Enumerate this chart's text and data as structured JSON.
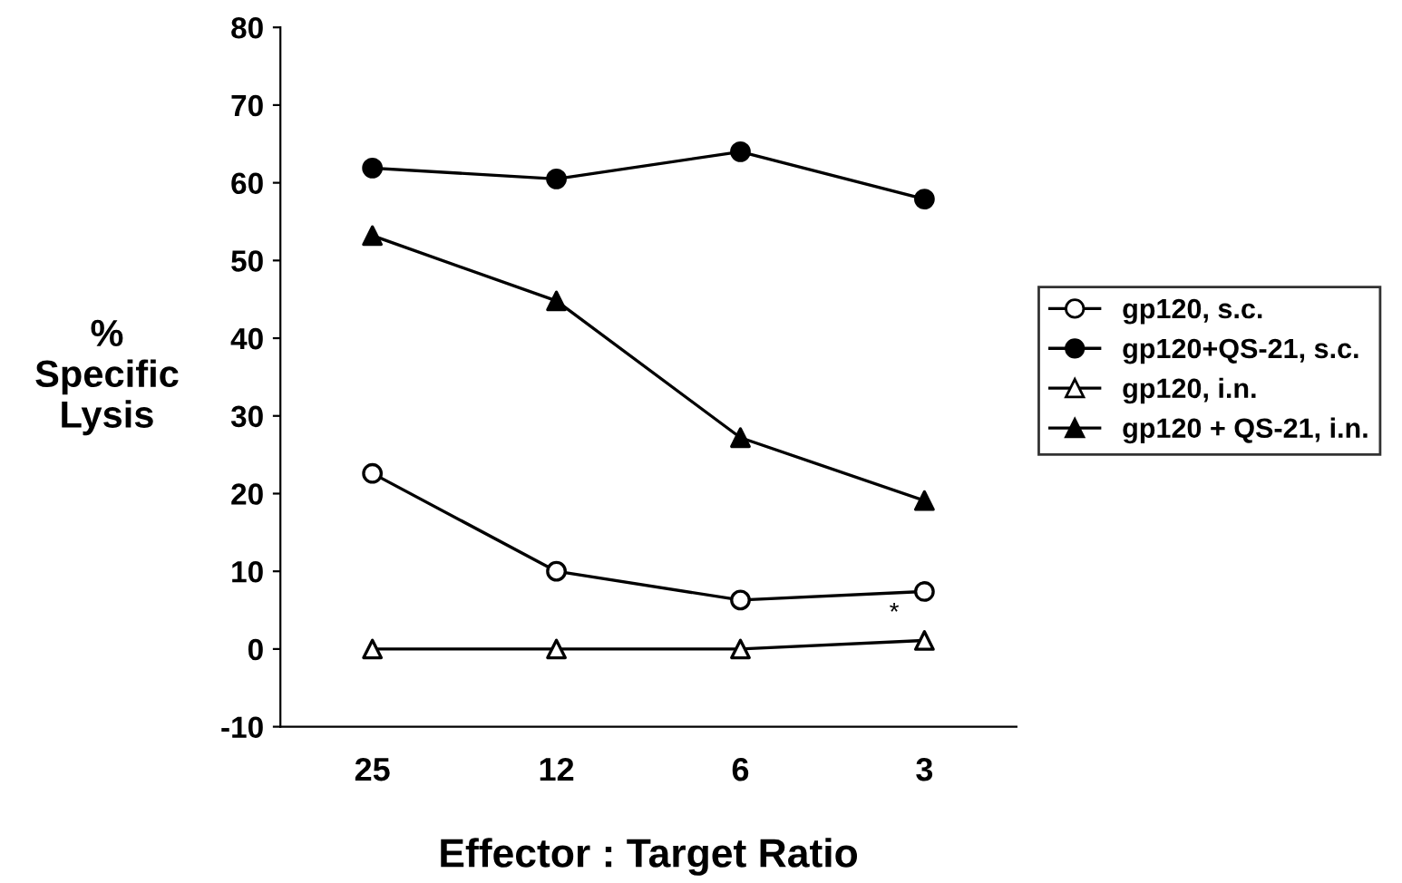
{
  "chart_data": {
    "type": "line",
    "xlabel": "Effector : Target Ratio",
    "ylabel": "%\nSpecific\nLysis",
    "categories": [
      "25",
      "12",
      "6",
      "3"
    ],
    "series": [
      {
        "name": "gp120, s.c.",
        "color": "#000000",
        "marker": "circle",
        "colors": [
          "#ffffff",
          "#ffffff",
          "#ffffff",
          "#ffffff"
        ],
        "values": [
          22.6,
          10,
          6.3,
          7.4
        ]
      },
      {
        "name": "gp120+QS-21, s.c.",
        "color": "#000000",
        "marker": "circle",
        "colors": [
          "#000000",
          "#000000",
          "#000000",
          "#000000"
        ],
        "values": [
          61.9,
          60.5,
          64,
          57.9
        ]
      },
      {
        "name": "gp120, i.n.",
        "color": "#000000",
        "marker": "triangle",
        "colors": [
          "#ffffff",
          "#ffffff",
          "#ffffff",
          "#ffffff"
        ],
        "values": [
          0,
          0,
          0,
          1.1
        ]
      },
      {
        "name": "gp120 + QS-21, i.n.",
        "color": "#000000",
        "marker": "triangle",
        "colors": [
          "#000000",
          "#000000",
          "#000000",
          "#000000"
        ],
        "values": [
          53.2,
          44.8,
          27.2,
          19.1
        ]
      }
    ],
    "annotations": [
      {
        "text": "*",
        "x": "3",
        "y": 1.1
      }
    ],
    "ylim": [
      -10,
      80
    ],
    "yticks": [
      -10,
      0,
      10,
      20,
      30,
      40,
      50,
      60,
      70,
      80
    ],
    "legend": "right",
    "line_style": "solid"
  }
}
